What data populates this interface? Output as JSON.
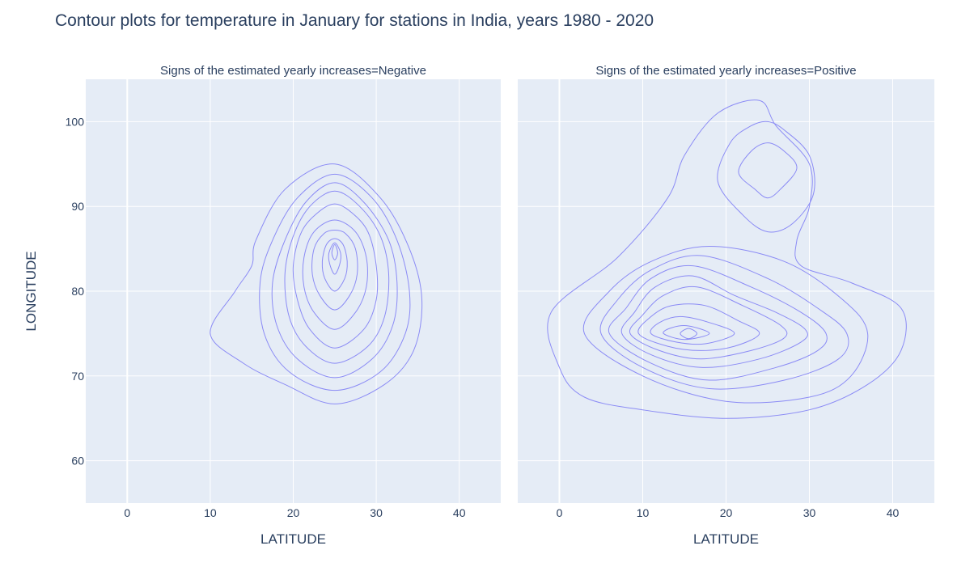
{
  "title": "Contour plots for temperature in January for stations in India, years 1980 - 2020",
  "colors": {
    "plot_bg": "#e5ecf6",
    "contour": "#8b8bf5",
    "grid": "#ffffff",
    "text": "#2a3f5f"
  },
  "chart_data": [
    {
      "type": "contour",
      "subplot_title": "Signs of the estimated yearly increases=Negative",
      "xlabel": "LATITUDE",
      "ylabel": "LONGITUDE",
      "xlim": [
        -5,
        45
      ],
      "ylim": [
        55,
        105
      ],
      "xticks": [
        0,
        10,
        20,
        30,
        40
      ],
      "yticks": [
        60,
        70,
        80,
        90,
        100
      ],
      "grid": true,
      "contours": [
        [
          [
            25,
            66.7
          ],
          [
            31,
            69
          ],
          [
            34.5,
            73
          ],
          [
            35.5,
            79
          ],
          [
            34,
            85
          ],
          [
            30.5,
            91
          ],
          [
            25,
            95
          ],
          [
            19,
            92
          ],
          [
            15.5,
            86
          ],
          [
            15,
            83
          ],
          [
            13,
            80
          ],
          [
            10,
            75
          ],
          [
            14,
            71.5
          ],
          [
            19,
            69
          ]
        ],
        [
          [
            25,
            68.3
          ],
          [
            30.5,
            70.5
          ],
          [
            33.5,
            75
          ],
          [
            34,
            80
          ],
          [
            32.5,
            86
          ],
          [
            29.5,
            91
          ],
          [
            25,
            93.8
          ],
          [
            20.5,
            91
          ],
          [
            17.5,
            86
          ],
          [
            16,
            81
          ],
          [
            16.5,
            75
          ],
          [
            19.5,
            70.5
          ]
        ],
        [
          [
            25,
            69.8
          ],
          [
            29.5,
            72
          ],
          [
            32,
            76
          ],
          [
            32.5,
            81
          ],
          [
            31.5,
            86
          ],
          [
            28.5,
            90.5
          ],
          [
            25,
            92.8
          ],
          [
            21.5,
            90.5
          ],
          [
            19,
            86
          ],
          [
            17.5,
            81
          ],
          [
            18,
            76
          ],
          [
            20.5,
            72
          ]
        ],
        [
          [
            25,
            71.5
          ],
          [
            29,
            73.5
          ],
          [
            31,
            77
          ],
          [
            31.5,
            82
          ],
          [
            30.5,
            86.5
          ],
          [
            28,
            90
          ],
          [
            25,
            91.8
          ],
          [
            22,
            90
          ],
          [
            20,
            86.5
          ],
          [
            19,
            82
          ],
          [
            19.5,
            77
          ],
          [
            21.5,
            73.5
          ]
        ],
        [
          [
            25,
            73.3
          ],
          [
            28.5,
            75.5
          ],
          [
            30,
            79
          ],
          [
            30,
            83
          ],
          [
            29,
            87
          ],
          [
            27,
            89.3
          ],
          [
            25,
            90.3
          ],
          [
            23,
            89.3
          ],
          [
            21,
            87
          ],
          [
            20,
            83
          ],
          [
            20.5,
            79
          ],
          [
            22,
            75.5
          ]
        ],
        [
          [
            25,
            75.5
          ],
          [
            27.5,
            77.5
          ],
          [
            28.8,
            80.5
          ],
          [
            28.8,
            84
          ],
          [
            27.5,
            87
          ],
          [
            25,
            88.4
          ],
          [
            22.5,
            87
          ],
          [
            21.3,
            84
          ],
          [
            21.3,
            80.5
          ],
          [
            22.5,
            77.5
          ]
        ],
        [
          [
            25,
            77.8
          ],
          [
            26.8,
            79.5
          ],
          [
            27.7,
            82
          ],
          [
            27.5,
            85
          ],
          [
            26.3,
            86.8
          ],
          [
            25,
            87.2
          ],
          [
            23.7,
            86.8
          ],
          [
            22.5,
            85
          ],
          [
            22.3,
            82
          ],
          [
            23.2,
            79.5
          ]
        ],
        [
          [
            25,
            80
          ],
          [
            26.2,
            81.5
          ],
          [
            26.5,
            83.5
          ],
          [
            26,
            85.5
          ],
          [
            25,
            86.2
          ],
          [
            24,
            85.5
          ],
          [
            23.5,
            83.5
          ],
          [
            23.8,
            81.5
          ]
        ],
        [
          [
            25,
            82
          ],
          [
            25.6,
            83.2
          ],
          [
            25.7,
            84.5
          ],
          [
            25,
            85.7
          ],
          [
            24.3,
            84.5
          ],
          [
            24.4,
            83.2
          ]
        ],
        [
          [
            25,
            83.7
          ],
          [
            25.35,
            84.5
          ],
          [
            25,
            85.5
          ],
          [
            24.65,
            84.5
          ]
        ]
      ]
    },
    {
      "type": "contour",
      "subplot_title": "Signs of the estimated yearly increases=Positive",
      "xlabel": "LATITUDE",
      "ylabel": "",
      "xlim": [
        -5,
        45
      ],
      "ylim": [
        55,
        105
      ],
      "xticks": [
        0,
        10,
        20,
        30,
        40
      ],
      "yticks": [
        60,
        70,
        80,
        90,
        100
      ],
      "grid": true,
      "contours": [
        [
          [
            0,
            71
          ],
          [
            3,
            67.5
          ],
          [
            10,
            66
          ],
          [
            20,
            65
          ],
          [
            30,
            66
          ],
          [
            37,
            69
          ],
          [
            41,
            73
          ],
          [
            41,
            78
          ],
          [
            35,
            81
          ],
          [
            29,
            83
          ],
          [
            28.5,
            86
          ],
          [
            30,
            90
          ],
          [
            30,
            95
          ],
          [
            26,
            99.5
          ],
          [
            24,
            102.5
          ],
          [
            19,
            101
          ],
          [
            15,
            96
          ],
          [
            13,
            91
          ],
          [
            7,
            84
          ],
          [
            -1,
            77.5
          ]
        ],
        [
          [
            3,
            75
          ],
          [
            10,
            70
          ],
          [
            20,
            67
          ],
          [
            30,
            67.5
          ],
          [
            35,
            70
          ],
          [
            37,
            75
          ],
          [
            34,
            79
          ],
          [
            27,
            83.5
          ],
          [
            18,
            85.3
          ],
          [
            11,
            83.5
          ],
          [
            6,
            80
          ]
        ],
        [
          [
            5,
            75
          ],
          [
            10,
            71
          ],
          [
            18,
            68.5
          ],
          [
            27,
            69.5
          ],
          [
            33.5,
            72
          ],
          [
            34.5,
            75
          ],
          [
            31,
            78
          ],
          [
            25,
            81.5
          ],
          [
            17,
            84.2
          ],
          [
            11,
            82.5
          ],
          [
            7,
            79
          ]
        ],
        [
          [
            6,
            75
          ],
          [
            11,
            71.5
          ],
          [
            18,
            69.5
          ],
          [
            26,
            71
          ],
          [
            31,
            73
          ],
          [
            32,
            75
          ],
          [
            29,
            77.5
          ],
          [
            23,
            80.5
          ],
          [
            16,
            83
          ],
          [
            11,
            81.5
          ],
          [
            8,
            78
          ]
        ],
        [
          [
            7.5,
            75
          ],
          [
            11,
            72.5
          ],
          [
            17,
            71
          ],
          [
            24,
            72
          ],
          [
            29,
            74
          ],
          [
            29.5,
            75.5
          ],
          [
            26,
            77.5
          ],
          [
            21,
            79.5
          ],
          [
            16,
            81.8
          ],
          [
            11.5,
            80.5
          ],
          [
            9,
            77.5
          ]
        ],
        [
          [
            8.5,
            75
          ],
          [
            12,
            73
          ],
          [
            17,
            72
          ],
          [
            23,
            73
          ],
          [
            27,
            74.5
          ],
          [
            26.5,
            76
          ],
          [
            22,
            78.3
          ],
          [
            16.5,
            80.5
          ],
          [
            12.5,
            79.5
          ],
          [
            10,
            77.2
          ]
        ],
        [
          [
            9.5,
            75
          ],
          [
            13,
            73.5
          ],
          [
            17,
            73
          ],
          [
            21,
            73.5
          ],
          [
            24,
            75
          ],
          [
            21.5,
            76.5
          ],
          [
            17.5,
            78.3
          ],
          [
            13.5,
            78.3
          ],
          [
            11,
            77
          ]
        ],
        [
          [
            11,
            75
          ],
          [
            14,
            74
          ],
          [
            17.5,
            73.8
          ],
          [
            21,
            75
          ],
          [
            18,
            76.3
          ],
          [
            14.5,
            77
          ],
          [
            12,
            76.3
          ]
        ],
        [
          [
            12.5,
            75
          ],
          [
            15,
            74.3
          ],
          [
            18,
            75
          ],
          [
            15.5,
            75.9
          ],
          [
            13.5,
            75.7
          ]
        ],
        [
          [
            14.5,
            75
          ],
          [
            15.5,
            74.4
          ],
          [
            16.5,
            75
          ],
          [
            15.5,
            75.6
          ]
        ],
        [
          [
            19,
            93
          ],
          [
            22,
            89
          ],
          [
            25,
            87
          ],
          [
            28,
            88
          ],
          [
            30.5,
            91.5
          ],
          [
            30,
            96
          ],
          [
            27,
            99
          ],
          [
            25,
            100
          ],
          [
            23,
            99.5
          ],
          [
            20.5,
            97.5
          ]
        ],
        [
          [
            21.5,
            94
          ],
          [
            23.5,
            92
          ],
          [
            25,
            91
          ],
          [
            26.5,
            92
          ],
          [
            28.5,
            94.5
          ],
          [
            27,
            96.5
          ],
          [
            25,
            97.5
          ],
          [
            23,
            96.5
          ]
        ]
      ]
    }
  ]
}
